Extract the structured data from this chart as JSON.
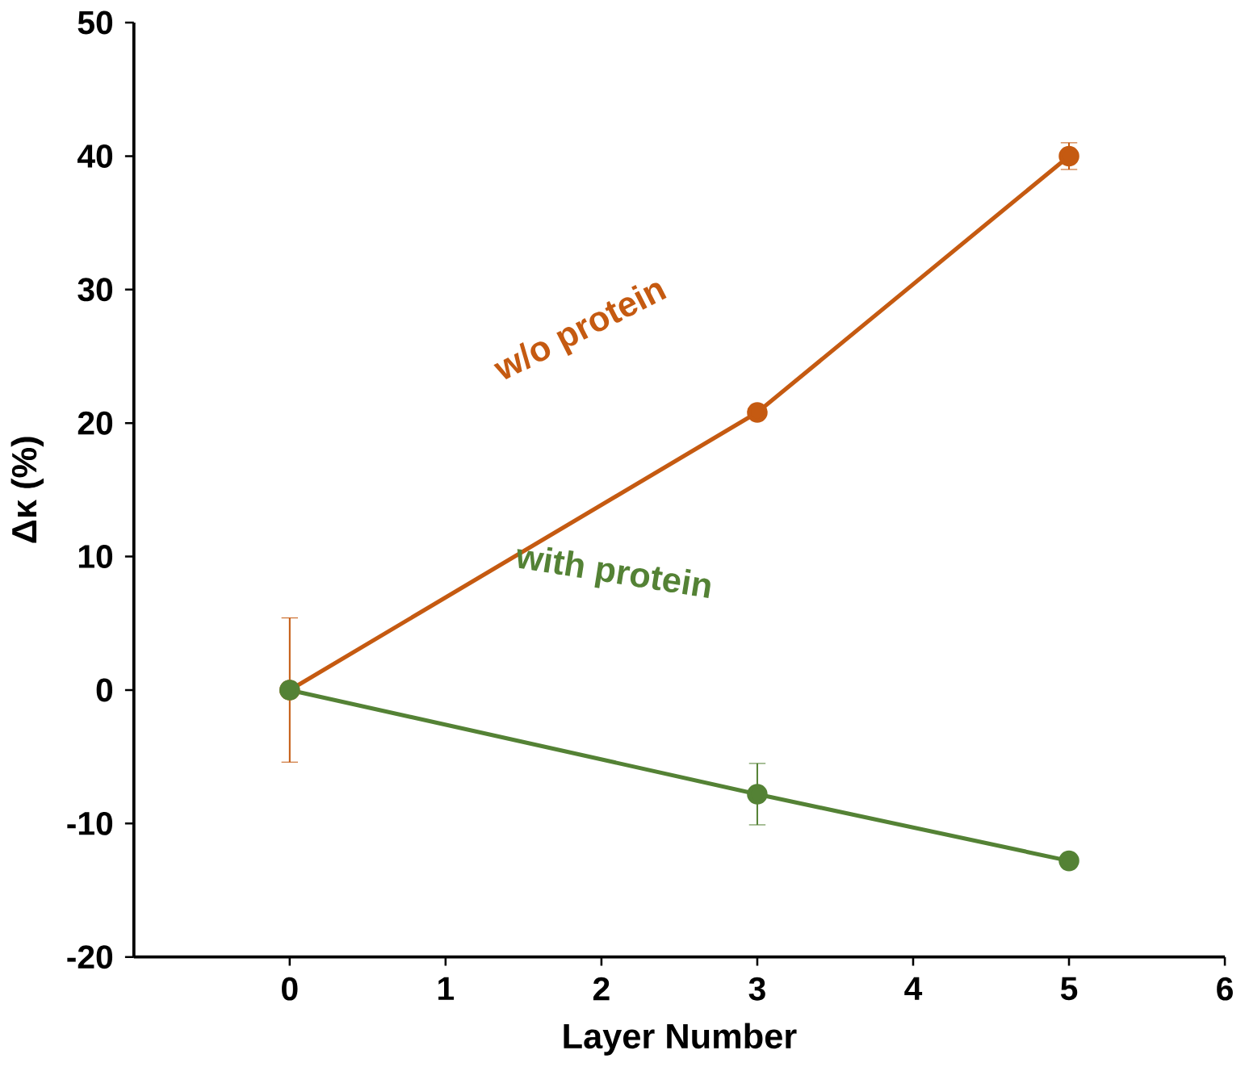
{
  "chart_data": {
    "type": "line",
    "xlabel": "Layer Number",
    "ylabel": "Δκ (%)",
    "x": [
      0,
      3,
      5
    ],
    "series": [
      {
        "color": "#c55a11",
        "values": [
          0,
          20.8,
          40
        ],
        "errors": [
          5.4,
          null,
          1
        ]
      },
      {
        "color": "#548235",
        "values": [
          0,
          -7.8,
          -12.8
        ],
        "errors": [
          null,
          2.3,
          null
        ]
      }
    ],
    "annotations": [
      "w/o protein",
      "with protein"
    ],
    "xlim": [
      -1,
      6
    ],
    "xticks": [
      0,
      1,
      2,
      3,
      4,
      5,
      6
    ],
    "ylim": [
      -20,
      50
    ],
    "yticks": [
      -20,
      -10,
      0,
      10,
      20,
      30,
      40,
      50
    ],
    "marker": "circle",
    "line_style": "solid"
  }
}
